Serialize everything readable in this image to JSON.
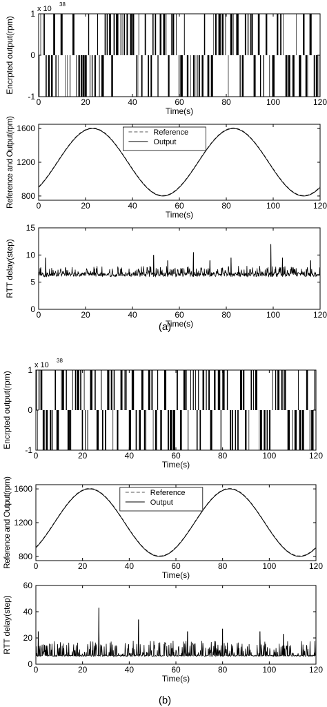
{
  "captions": [
    "(a)",
    "(b)"
  ],
  "colors": {
    "axes": "#000000",
    "reference": "#555555",
    "output": "#000000",
    "background": "#ffffff"
  },
  "chart_data": [
    {
      "id": "a1",
      "panel": "(a)",
      "type": "line",
      "variant": "binary-pulses",
      "xlabel": "Time(s)",
      "ylabel": "Encrpted output(rpm)",
      "exponent_label": "x 10",
      "exponent_power": "38",
      "xlim": [
        0,
        120
      ],
      "ylim": [
        -1,
        1
      ],
      "xticks": [
        0,
        20,
        40,
        60,
        80,
        100,
        120
      ],
      "yticks": [
        -1,
        0,
        1
      ],
      "series": [
        {
          "values": [
            1,
            -1
          ],
          "seed": 11
        }
      ],
      "grid": false
    },
    {
      "id": "a2",
      "panel": "(a)",
      "type": "line",
      "variant": "sine",
      "xlabel": "Time(s)",
      "ylabel": "Reference and Output(rpm)",
      "xlim": [
        0,
        120
      ],
      "ylim": [
        750,
        1650
      ],
      "xticks": [
        0,
        20,
        40,
        60,
        80,
        100,
        120
      ],
      "yticks": [
        800,
        1200,
        1600
      ],
      "legend": {
        "position": "top-center",
        "entries": [
          "Reference",
          "Output"
        ]
      },
      "series": [
        {
          "name": "Reference",
          "style": "dashed",
          "formula": "1200 + 400*sin(2*pi*(x - 8)/60)",
          "x_range": [
            0,
            120
          ],
          "y_min": 800,
          "y_max": 1600,
          "period": 60
        },
        {
          "name": "Output",
          "style": "solid",
          "formula": "1200 + 400*sin(2*pi*(x - 8)/60)",
          "x_range": [
            0,
            120
          ],
          "y_min": 800,
          "y_max": 1600,
          "period": 60
        }
      ],
      "grid": false
    },
    {
      "id": "a3",
      "panel": "(a)",
      "type": "line",
      "variant": "spikes",
      "xlabel": "Time(s)",
      "ylabel": "RTT delay(step)",
      "xlim": [
        0,
        120
      ],
      "ylim": [
        0,
        15
      ],
      "xticks": [
        0,
        20,
        40,
        60,
        80,
        100,
        120
      ],
      "yticks": [
        0,
        5,
        10,
        15
      ],
      "series": [
        {
          "baseline": 6,
          "typical_max": 8,
          "peaks": [
            [
              3,
              9.5
            ],
            [
              49,
              10
            ],
            [
              55,
              9
            ],
            [
              66,
              10.5
            ],
            [
              73,
              9
            ],
            [
              82,
              9.5
            ],
            [
              99,
              12
            ],
            [
              104,
              9.5
            ],
            [
              116,
              9
            ]
          ],
          "seed": 21
        }
      ],
      "grid": false
    },
    {
      "id": "b1",
      "panel": "(b)",
      "type": "line",
      "variant": "binary-pulses",
      "xlabel": "Time(s)",
      "ylabel": "Encrpted output(rpm)",
      "exponent_label": "x 10",
      "exponent_power": "38",
      "xlim": [
        0,
        120
      ],
      "ylim": [
        -1,
        1
      ],
      "xticks": [
        0,
        20,
        40,
        60,
        80,
        100,
        120
      ],
      "yticks": [
        -1,
        0,
        1
      ],
      "series": [
        {
          "values": [
            1,
            -1
          ],
          "seed": 37
        }
      ],
      "grid": false
    },
    {
      "id": "b2",
      "panel": "(b)",
      "type": "line",
      "variant": "sine",
      "xlabel": "Time(s)",
      "ylabel": "Reference and Output(rpm)",
      "xlim": [
        0,
        120
      ],
      "ylim": [
        750,
        1650
      ],
      "xticks": [
        0,
        20,
        40,
        60,
        80,
        100,
        120
      ],
      "yticks": [
        800,
        1200,
        1600
      ],
      "legend": {
        "position": "top-center",
        "entries": [
          "Reference",
          "Output"
        ]
      },
      "series": [
        {
          "name": "Reference",
          "style": "dashed",
          "formula": "1200 + 400*sin(2*pi*(x - 8)/60)",
          "x_range": [
            0,
            120
          ],
          "y_min": 800,
          "y_max": 1600,
          "period": 60
        },
        {
          "name": "Output",
          "style": "solid",
          "formula": "1200 + 400*sin(2*pi*(x - 8)/60)",
          "x_range": [
            0,
            120
          ],
          "y_min": 800,
          "y_max": 1600,
          "period": 60
        }
      ],
      "grid": false
    },
    {
      "id": "b3",
      "panel": "(b)",
      "type": "line",
      "variant": "spikes",
      "xlabel": "Time(s)",
      "ylabel": "RTT delay(step)",
      "xlim": [
        0,
        120
      ],
      "ylim": [
        0,
        60
      ],
      "xticks": [
        0,
        20,
        40,
        60,
        80,
        100,
        120
      ],
      "yticks": [
        0,
        20,
        40,
        60
      ],
      "series": [
        {
          "baseline": 6,
          "typical_max": 18,
          "peaks": [
            [
              1,
              25
            ],
            [
              27,
              43
            ],
            [
              44,
              34
            ],
            [
              65,
              25
            ],
            [
              80,
              27
            ],
            [
              96,
              25
            ],
            [
              106,
              23
            ]
          ],
          "seed": 53
        }
      ],
      "grid": false
    }
  ]
}
